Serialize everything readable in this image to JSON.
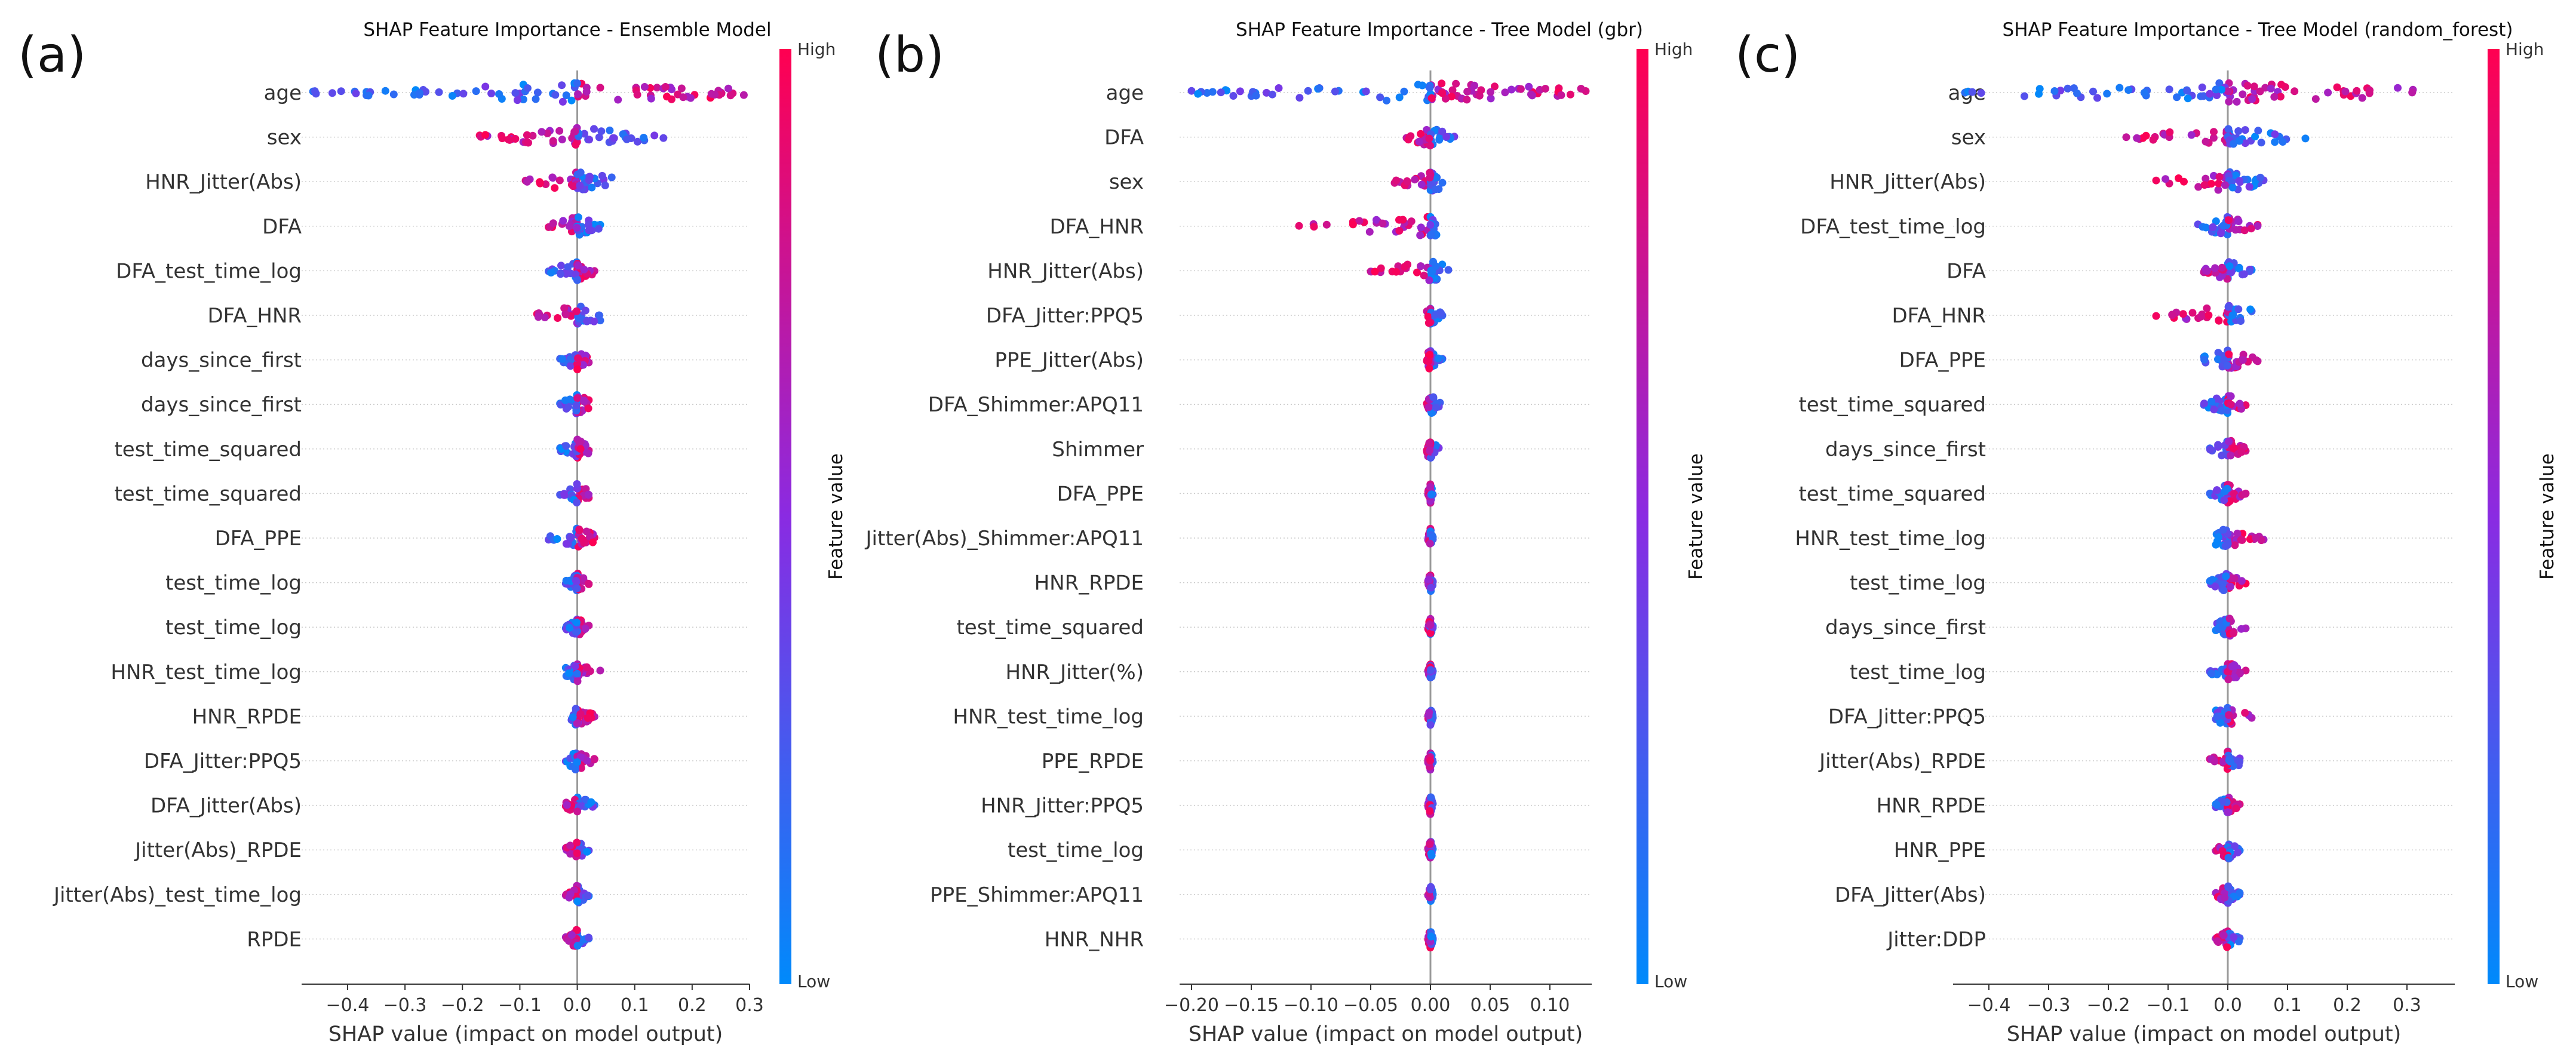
{
  "figure": {
    "colors": {
      "low": "#008afb",
      "high": "#ff0051",
      "zero_line": "#999999",
      "row_line": "#cccccc",
      "axis": "#333333"
    },
    "colorbar": {
      "high_label": "High",
      "low_label": "Low",
      "title": "Feature value"
    }
  },
  "chart_data": [
    {
      "type": "scatter",
      "subtype": "shap-beeswarm",
      "panel_label": "(a)",
      "title": "SHAP Feature Importance - Ensemble Model",
      "xlabel": "SHAP value (impact on model output)",
      "xlim": [
        -0.48,
        0.3
      ],
      "xticks": [
        -0.4,
        -0.3,
        -0.2,
        -0.1,
        0.0,
        0.1,
        0.2,
        0.3
      ],
      "xtick_labels": [
        "−0.4",
        "−0.3",
        "−0.2",
        "−0.1",
        "0.0",
        "0.1",
        "0.2",
        "0.3"
      ],
      "features": [
        {
          "name": "age",
          "spread": [
            -0.46,
            0.29
          ],
          "low_side": "negative"
        },
        {
          "name": "sex",
          "spread": [
            -0.17,
            0.15
          ],
          "low_side": "positive"
        },
        {
          "name": "HNR_Jitter(Abs)",
          "spread": [
            -0.09,
            0.06
          ],
          "low_side": "positive"
        },
        {
          "name": "DFA",
          "spread": [
            -0.05,
            0.04
          ],
          "low_side": "positive"
        },
        {
          "name": "DFA_test_time_log",
          "spread": [
            -0.05,
            0.03
          ],
          "low_side": "negative"
        },
        {
          "name": "DFA_HNR",
          "spread": [
            -0.07,
            0.04
          ],
          "low_side": "positive"
        },
        {
          "name": "days_since_first",
          "spread": [
            -0.03,
            0.02
          ],
          "low_side": "negative"
        },
        {
          "name": "days_since_first",
          "spread": [
            -0.03,
            0.02
          ],
          "low_side": "negative"
        },
        {
          "name": "test_time_squared",
          "spread": [
            -0.03,
            0.02
          ],
          "low_side": "negative"
        },
        {
          "name": "test_time_squared",
          "spread": [
            -0.03,
            0.02
          ],
          "low_side": "negative"
        },
        {
          "name": "DFA_PPE",
          "spread": [
            -0.05,
            0.03
          ],
          "low_side": "negative"
        },
        {
          "name": "test_time_log",
          "spread": [
            -0.02,
            0.02
          ],
          "low_side": "negative"
        },
        {
          "name": "test_time_log",
          "spread": [
            -0.02,
            0.02
          ],
          "low_side": "negative"
        },
        {
          "name": "HNR_test_time_log",
          "spread": [
            -0.02,
            0.04
          ],
          "low_side": "negative"
        },
        {
          "name": "HNR_RPDE",
          "spread": [
            -0.01,
            0.03
          ],
          "low_side": "negative"
        },
        {
          "name": "DFA_Jitter:PPQ5",
          "spread": [
            -0.02,
            0.03
          ],
          "low_side": "negative"
        },
        {
          "name": "DFA_Jitter(Abs)",
          "spread": [
            -0.02,
            0.03
          ],
          "low_side": "positive"
        },
        {
          "name": "Jitter(Abs)_RPDE",
          "spread": [
            -0.02,
            0.02
          ],
          "low_side": "positive"
        },
        {
          "name": "Jitter(Abs)_test_time_log",
          "spread": [
            -0.02,
            0.02
          ],
          "low_side": "positive"
        },
        {
          "name": "RPDE",
          "spread": [
            -0.02,
            0.02
          ],
          "low_side": "positive"
        }
      ]
    },
    {
      "type": "scatter",
      "subtype": "shap-beeswarm",
      "panel_label": "(b)",
      "title": "SHAP Feature Importance - Tree Model (gbr)",
      "xlabel": "SHAP value (impact on model output)",
      "xlim": [
        -0.21,
        0.135
      ],
      "xticks": [
        -0.2,
        -0.15,
        -0.1,
        -0.05,
        0.0,
        0.05,
        0.1
      ],
      "xtick_labels": [
        "−0.20",
        "−0.15",
        "−0.10",
        "−0.05",
        "0.00",
        "0.05",
        "0.10"
      ],
      "features": [
        {
          "name": "age",
          "spread": [
            -0.2,
            0.13
          ],
          "low_side": "negative"
        },
        {
          "name": "DFA",
          "spread": [
            -0.02,
            0.02
          ],
          "low_side": "positive"
        },
        {
          "name": "sex",
          "spread": [
            -0.03,
            0.01
          ],
          "low_side": "positive"
        },
        {
          "name": "DFA_HNR",
          "spread": [
            -0.11,
            0.005
          ],
          "low_side": "positive"
        },
        {
          "name": "HNR_Jitter(Abs)",
          "spread": [
            -0.05,
            0.015
          ],
          "low_side": "positive"
        },
        {
          "name": "DFA_Jitter:PPQ5",
          "spread": [
            -0.003,
            0.01
          ],
          "low_side": "positive"
        },
        {
          "name": "PPE_Jitter(Abs)",
          "spread": [
            -0.003,
            0.01
          ],
          "low_side": "positive"
        },
        {
          "name": "DFA_Shimmer:APQ11",
          "spread": [
            -0.003,
            0.008
          ],
          "low_side": "positive"
        },
        {
          "name": "Shimmer",
          "spread": [
            -0.003,
            0.007
          ],
          "low_side": "positive"
        },
        {
          "name": "DFA_PPE",
          "spread": [
            -0.002,
            0.002
          ],
          "low_side": "positive"
        },
        {
          "name": "Jitter(Abs)_Shimmer:APQ11",
          "spread": [
            -0.002,
            0.002
          ],
          "low_side": "positive"
        },
        {
          "name": "HNR_RPDE",
          "spread": [
            -0.002,
            0.002
          ],
          "low_side": "positive"
        },
        {
          "name": "test_time_squared",
          "spread": [
            -0.002,
            0.002
          ],
          "low_side": "positive"
        },
        {
          "name": "HNR_Jitter(%)",
          "spread": [
            -0.002,
            0.002
          ],
          "low_side": "positive"
        },
        {
          "name": "HNR_test_time_log",
          "spread": [
            -0.002,
            0.002
          ],
          "low_side": "positive"
        },
        {
          "name": "PPE_RPDE",
          "spread": [
            -0.002,
            0.002
          ],
          "low_side": "positive"
        },
        {
          "name": "HNR_Jitter:PPQ5",
          "spread": [
            -0.002,
            0.002
          ],
          "low_side": "positive"
        },
        {
          "name": "test_time_log",
          "spread": [
            -0.002,
            0.002
          ],
          "low_side": "positive"
        },
        {
          "name": "PPE_Shimmer:APQ11",
          "spread": [
            -0.002,
            0.002
          ],
          "low_side": "positive"
        },
        {
          "name": "HNR_NHR",
          "spread": [
            -0.002,
            0.002
          ],
          "low_side": "positive"
        }
      ]
    },
    {
      "type": "scatter",
      "subtype": "shap-beeswarm",
      "panel_label": "(c)",
      "title": "SHAP Feature Importance - Tree Model (random_forest)",
      "xlabel": "SHAP value (impact on model output)",
      "xlim": [
        -0.46,
        0.38
      ],
      "xticks": [
        -0.4,
        -0.3,
        -0.2,
        -0.1,
        0.0,
        0.1,
        0.2,
        0.3
      ],
      "xtick_labels": [
        "−0.4",
        "−0.3",
        "−0.2",
        "−0.1",
        "0.0",
        "0.1",
        "0.2",
        "0.3"
      ],
      "features": [
        {
          "name": "age",
          "spread": [
            -0.44,
            0.31
          ],
          "low_side": "negative"
        },
        {
          "name": "sex",
          "spread": [
            -0.17,
            0.13
          ],
          "low_side": "positive"
        },
        {
          "name": "HNR_Jitter(Abs)",
          "spread": [
            -0.12,
            0.06
          ],
          "low_side": "positive"
        },
        {
          "name": "DFA_test_time_log",
          "spread": [
            -0.05,
            0.05
          ],
          "low_side": "negative"
        },
        {
          "name": "DFA",
          "spread": [
            -0.04,
            0.04
          ],
          "low_side": "positive"
        },
        {
          "name": "DFA_HNR",
          "spread": [
            -0.12,
            0.04
          ],
          "low_side": "positive"
        },
        {
          "name": "DFA_PPE",
          "spread": [
            -0.04,
            0.05
          ],
          "low_side": "negative"
        },
        {
          "name": "test_time_squared",
          "spread": [
            -0.04,
            0.03
          ],
          "low_side": "negative"
        },
        {
          "name": "days_since_first",
          "spread": [
            -0.03,
            0.03
          ],
          "low_side": "negative"
        },
        {
          "name": "test_time_squared",
          "spread": [
            -0.03,
            0.03
          ],
          "low_side": "negative"
        },
        {
          "name": "HNR_test_time_log",
          "spread": [
            -0.02,
            0.06
          ],
          "low_side": "negative"
        },
        {
          "name": "test_time_log",
          "spread": [
            -0.03,
            0.03
          ],
          "low_side": "negative"
        },
        {
          "name": "days_since_first",
          "spread": [
            -0.02,
            0.03
          ],
          "low_side": "negative"
        },
        {
          "name": "test_time_log",
          "spread": [
            -0.03,
            0.03
          ],
          "low_side": "negative"
        },
        {
          "name": "DFA_Jitter:PPQ5",
          "spread": [
            -0.02,
            0.04
          ],
          "low_side": "negative"
        },
        {
          "name": "Jitter(Abs)_RPDE",
          "spread": [
            -0.03,
            0.02
          ],
          "low_side": "positive"
        },
        {
          "name": "HNR_RPDE",
          "spread": [
            -0.02,
            0.02
          ],
          "low_side": "negative"
        },
        {
          "name": "HNR_PPE",
          "spread": [
            -0.02,
            0.02
          ],
          "low_side": "positive"
        },
        {
          "name": "DFA_Jitter(Abs)",
          "spread": [
            -0.02,
            0.02
          ],
          "low_side": "positive"
        },
        {
          "name": "Jitter:DDP",
          "spread": [
            -0.02,
            0.02
          ],
          "low_side": "positive"
        }
      ]
    }
  ]
}
